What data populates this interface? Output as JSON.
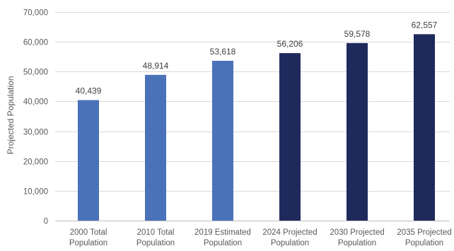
{
  "chart_data": {
    "type": "bar",
    "title": "",
    "xlabel": "",
    "ylabel": "Projected Population",
    "ylim": [
      0,
      70000
    ],
    "ytick_step": 10000,
    "ytick_labels": [
      "0",
      "10,000",
      "20,000",
      "30,000",
      "40,000",
      "50,000",
      "60,000",
      "70,000"
    ],
    "grid": true,
    "legend": "none",
    "categories": [
      [
        "2000 Total",
        "Population"
      ],
      [
        "2010 Total",
        "Population"
      ],
      [
        "2019 Estimated",
        "Population"
      ],
      [
        "2024 Projected",
        "Population"
      ],
      [
        "2030 Projected",
        "Population"
      ],
      [
        "2035 Projected",
        "Population"
      ]
    ],
    "values": [
      40439,
      48914,
      53618,
      56206,
      59578,
      62557
    ],
    "data_labels": [
      "40,439",
      "48,914",
      "53,618",
      "56,206",
      "59,578",
      "62,557"
    ],
    "bar_colors": [
      "#4a72b8",
      "#4a72b8",
      "#4a72b8",
      "#1f2a5c",
      "#1f2a5c",
      "#1f2a5c"
    ]
  }
}
